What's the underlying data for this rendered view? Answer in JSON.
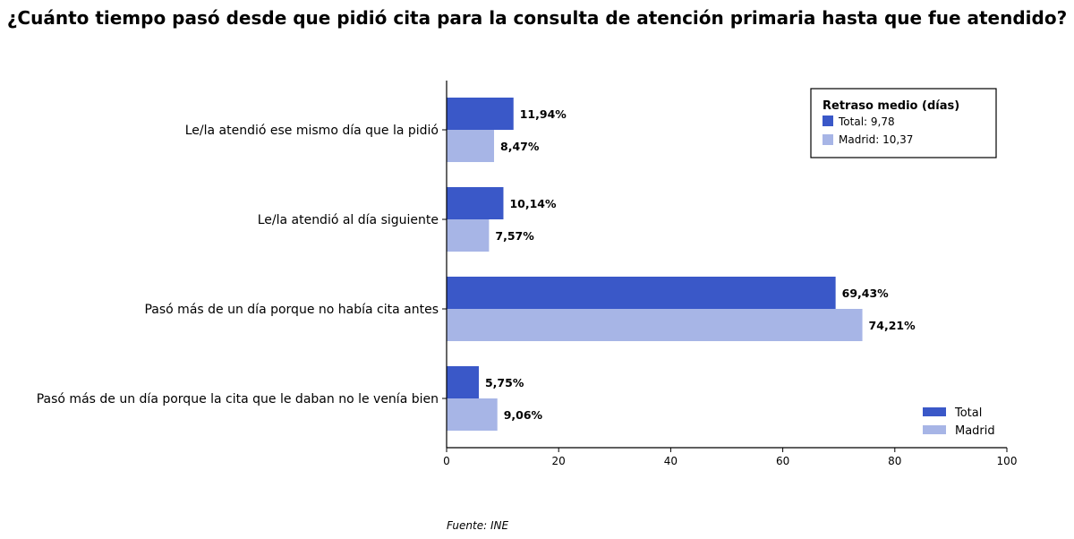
{
  "chart_data": {
    "type": "bar",
    "orientation": "horizontal",
    "title": "¿Cuánto tiempo pasó desde que pidió cita para la consulta de atención primaria hasta que fue atendido?",
    "categories": [
      "Le/la atendió ese mismo día que la pidió",
      "Le/la atendió al día siguiente",
      "Pasó más de un día porque no había cita antes",
      "Pasó más de un día porque la cita que le daban no le venía bien"
    ],
    "series": [
      {
        "name": "Total",
        "color": "#3a58c8",
        "values": [
          11.94,
          10.14,
          69.43,
          5.75
        ],
        "labels": [
          "11,94%",
          "10,14%",
          "69,43%",
          "5,75%"
        ]
      },
      {
        "name": "Madrid",
        "color": "#a7b5e6",
        "values": [
          8.47,
          7.57,
          74.21,
          9.06
        ],
        "labels": [
          "8,47%",
          "7,57%",
          "74,21%",
          "9,06%"
        ]
      }
    ],
    "xlim": [
      0,
      100
    ],
    "xticks": [
      "0",
      "20",
      "40",
      "60",
      "80",
      "100"
    ],
    "xlabel": "",
    "ylabel": "",
    "grid": false,
    "legend_position": "bottom-right",
    "info_box": {
      "title": "Retraso medio (días)",
      "position": "top-right",
      "items": [
        "Total: 9,78",
        "Madrid: 10,37"
      ]
    },
    "source": "Fuente: INE"
  }
}
